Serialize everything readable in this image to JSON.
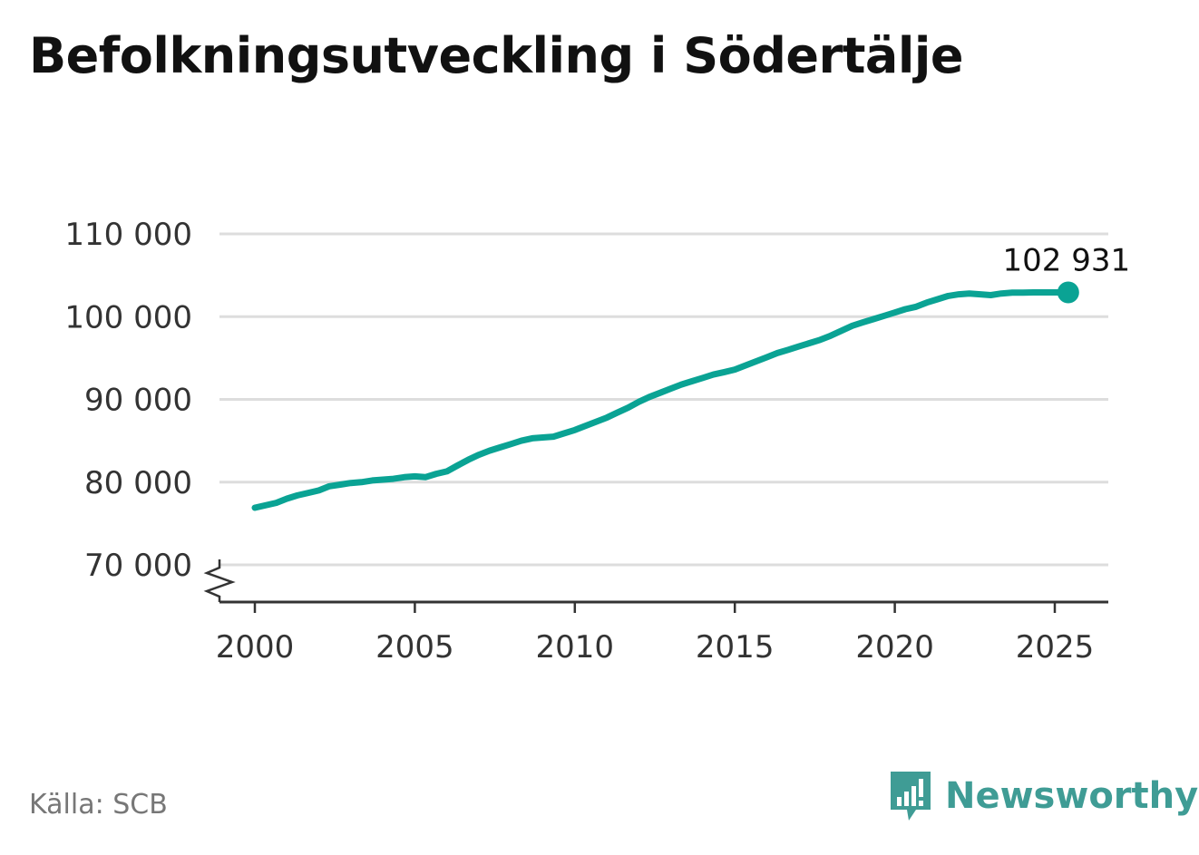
{
  "title": "Befolkningsutveckling i Södertälje",
  "source": "Källa: SCB",
  "brand": {
    "name": "Newsworthy",
    "logo_icon": "newsworthy-logo-icon",
    "color": "#3f9c95"
  },
  "colors": {
    "line": "#0aa394",
    "grid": "#dddddd",
    "axis": "#333333",
    "tick_label": "#333333"
  },
  "chart_data": {
    "type": "line",
    "title": "Befolkningsutveckling i Södertälje",
    "xlabel": "",
    "ylabel": "",
    "xlim": [
      1998.9,
      2026.6
    ],
    "ylim": [
      66000,
      110000
    ],
    "y_ticks": [
      70000,
      80000,
      90000,
      100000,
      110000
    ],
    "y_tick_labels": [
      "70 000",
      "80 000",
      "90 000",
      "100 000",
      "110 000"
    ],
    "x_ticks": [
      2000,
      2005,
      2010,
      2015,
      2020,
      2025
    ],
    "x_tick_labels": [
      "2000",
      "2005",
      "2010",
      "2015",
      "2020",
      "2025"
    ],
    "axis_break": true,
    "grid": "horizontal",
    "end_label": "102 931",
    "series": [
      {
        "x": [
          2000.0,
          2000.67,
          2001.0,
          2001.33,
          2001.67,
          2002.0,
          2002.33,
          2002.67,
          2003.0,
          2003.33,
          2003.67,
          2004.0,
          2004.33,
          2004.67,
          2005.0,
          2005.33,
          2005.67,
          2006.0,
          2006.33,
          2006.67,
          2007.0,
          2007.33,
          2007.67,
          2008.0,
          2008.33,
          2008.67,
          2009.0,
          2009.33,
          2009.67,
          2010.0,
          2010.33,
          2010.67,
          2011.0,
          2011.33,
          2011.67,
          2012.0,
          2012.33,
          2012.67,
          2013.0,
          2013.33,
          2013.67,
          2014.0,
          2014.33,
          2014.67,
          2015.0,
          2015.33,
          2015.67,
          2016.0,
          2016.33,
          2016.67,
          2017.0,
          2017.33,
          2017.67,
          2018.0,
          2018.33,
          2018.67,
          2019.0,
          2019.33,
          2019.67,
          2020.0,
          2020.33,
          2020.67,
          2021.0,
          2021.33,
          2021.67,
          2022.0,
          2022.33,
          2022.67,
          2023.0,
          2023.33,
          2023.67,
          2024.0,
          2024.33,
          2024.67,
          2025.0,
          2025.42
        ],
        "values": [
          76900,
          77500,
          78000,
          78400,
          78700,
          79000,
          79500,
          79700,
          79900,
          80000,
          80200,
          80300,
          80400,
          80600,
          80700,
          80600,
          81000,
          81300,
          82000,
          82700,
          83300,
          83800,
          84200,
          84600,
          85000,
          85300,
          85400,
          85500,
          85900,
          86300,
          86800,
          87300,
          87800,
          88400,
          89000,
          89700,
          90300,
          90800,
          91300,
          91800,
          92200,
          92600,
          93000,
          93300,
          93600,
          94100,
          94600,
          95100,
          95600,
          96000,
          96400,
          96800,
          97200,
          97700,
          98300,
          98900,
          99300,
          99700,
          100100,
          100500,
          100900,
          101200,
          101700,
          102100,
          102500,
          102700,
          102800,
          102700,
          102600,
          102800,
          102900,
          102900,
          102931,
          102931,
          102931,
          102931
        ]
      }
    ]
  }
}
